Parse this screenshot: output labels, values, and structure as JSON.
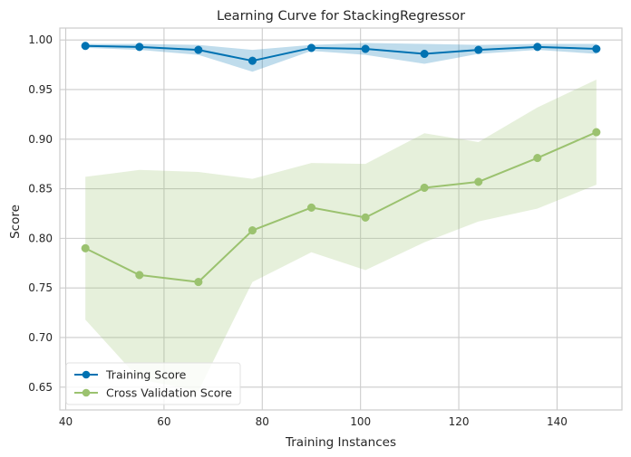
{
  "chart_data": {
    "type": "line",
    "title": "Learning Curve for StackingRegressor",
    "xlabel": "Training Instances",
    "ylabel": "Score",
    "xlim": [
      38.8,
      153.2
    ],
    "ylim": [
      0.627,
      1.012
    ],
    "xticks": [
      40,
      60,
      80,
      100,
      120,
      140
    ],
    "yticks": [
      0.65,
      0.7,
      0.75,
      0.8,
      0.85,
      0.9,
      0.95,
      1.0
    ],
    "grid": true,
    "legend_position": "lower-left",
    "x": [
      44,
      55,
      67,
      78,
      90,
      101,
      113,
      124,
      136,
      148
    ],
    "series": [
      {
        "name": "Training Score",
        "color": "#0072B2",
        "values": [
          0.994,
          0.993,
          0.99,
          0.979,
          0.992,
          0.991,
          0.986,
          0.99,
          0.993,
          0.991
        ],
        "band_upper": [
          0.996,
          0.996,
          0.995,
          0.99,
          0.995,
          0.997,
          0.996,
          0.995,
          0.996,
          0.996
        ],
        "band_lower": [
          0.992,
          0.99,
          0.985,
          0.968,
          0.989,
          0.985,
          0.976,
          0.986,
          0.99,
          0.986
        ]
      },
      {
        "name": "Cross Validation Score",
        "color": "#9BC26F",
        "values": [
          0.79,
          0.763,
          0.756,
          0.808,
          0.831,
          0.821,
          0.851,
          0.857,
          0.881,
          0.907
        ],
        "band_upper": [
          0.862,
          0.869,
          0.867,
          0.86,
          0.876,
          0.875,
          0.906,
          0.897,
          0.932,
          0.96
        ],
        "band_lower": [
          0.718,
          0.658,
          0.646,
          0.756,
          0.786,
          0.768,
          0.796,
          0.817,
          0.83,
          0.854
        ]
      }
    ]
  }
}
